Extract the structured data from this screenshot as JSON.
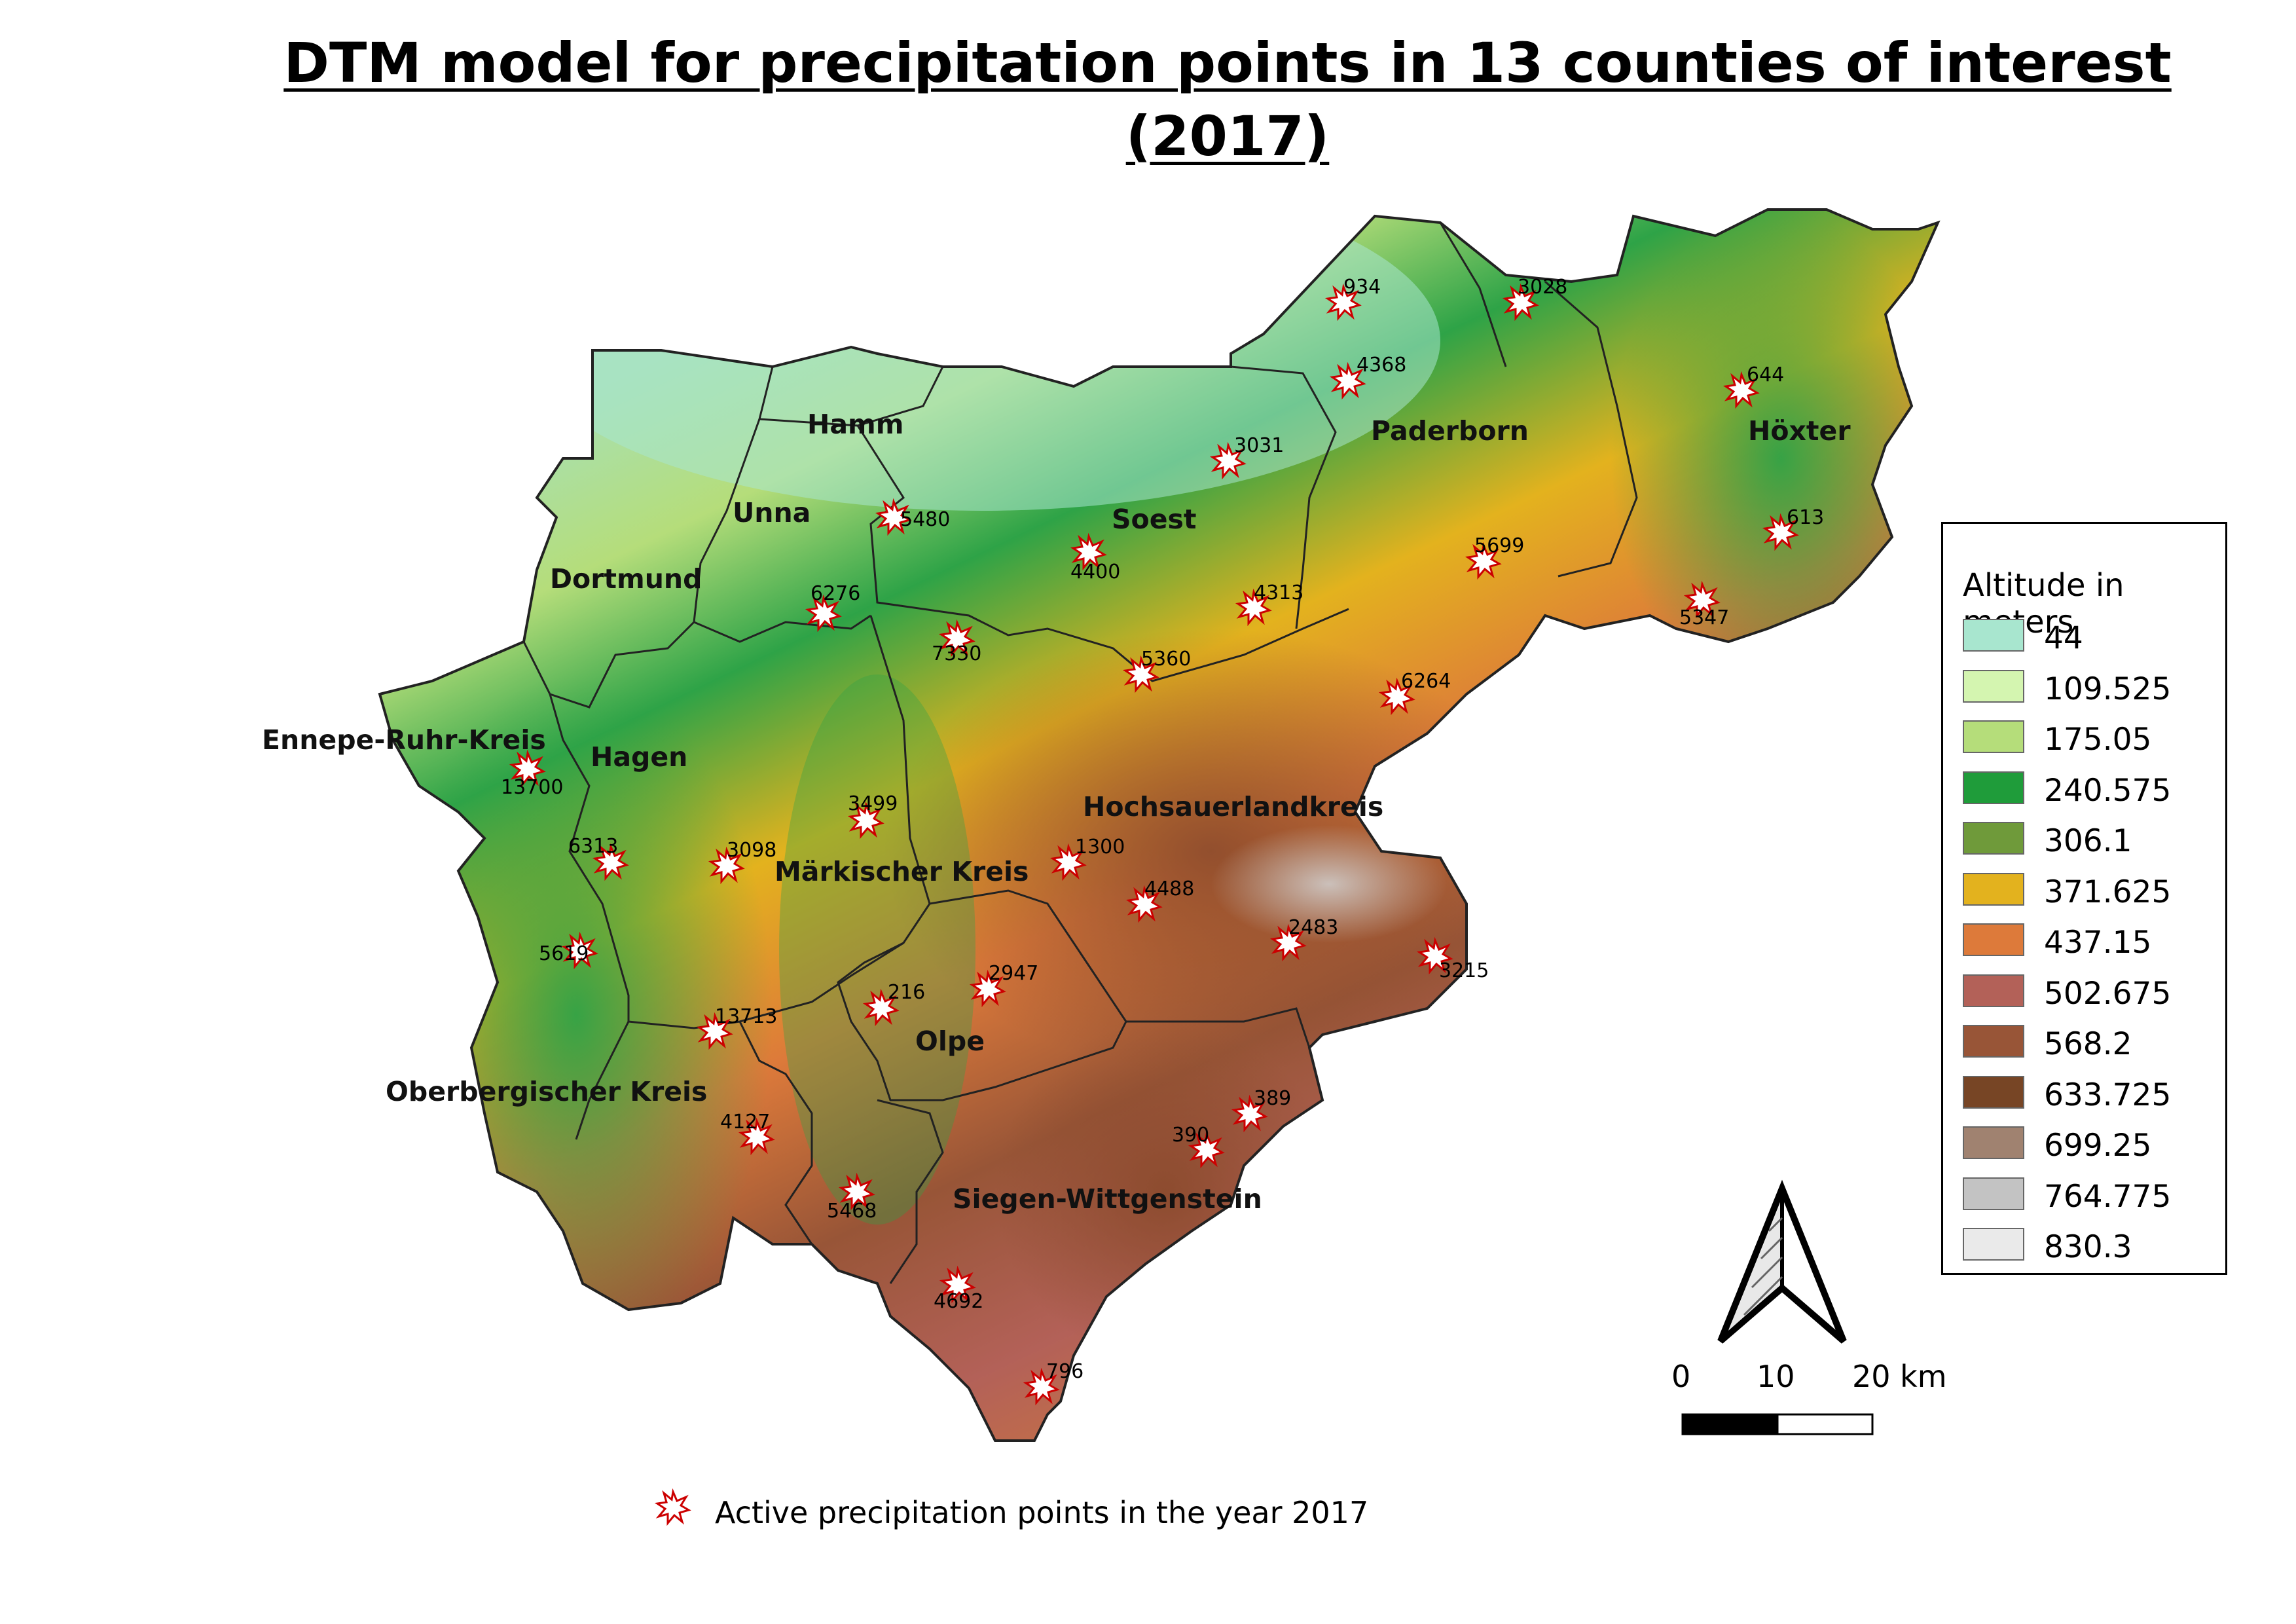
{
  "title_line1": "DTM model for precipitation points in 13 counties of interest",
  "title_line2": "(2017)",
  "legend": {
    "title": "Altitude in meters",
    "entries": [
      {
        "label": "44",
        "color": "#a8e6cf"
      },
      {
        "label": "109.525",
        "color": "#d4f5b0"
      },
      {
        "label": "175.05",
        "color": "#b5dd7a"
      },
      {
        "label": "240.575",
        "color": "#1f9c3a"
      },
      {
        "label": "306.1",
        "color": "#6f9a3a"
      },
      {
        "label": "371.625",
        "color": "#e3b21e"
      },
      {
        "label": "437.15",
        "color": "#dd7a3a"
      },
      {
        "label": "502.675",
        "color": "#b36158"
      },
      {
        "label": "568.2",
        "color": "#985537"
      },
      {
        "label": "633.725",
        "color": "#774525"
      },
      {
        "label": "699.25",
        "color": "#a08270"
      },
      {
        "label": "764.775",
        "color": "#c3c3c3"
      },
      {
        "label": "830.3",
        "color": "#eaeaea"
      }
    ]
  },
  "counties": [
    {
      "id": "hamm",
      "name": "Hamm"
    },
    {
      "id": "unna",
      "name": "Unna"
    },
    {
      "id": "dortmund",
      "name": "Dortmund"
    },
    {
      "id": "soest",
      "name": "Soest"
    },
    {
      "id": "paderborn",
      "name": "Paderborn"
    },
    {
      "id": "hoexter",
      "name": "Höxter"
    },
    {
      "id": "ennepe",
      "name": "Ennepe-Ruhr-Kreis"
    },
    {
      "id": "hagen",
      "name": "Hagen"
    },
    {
      "id": "maerkisch",
      "name": "Märkischer Kreis"
    },
    {
      "id": "hochsauerland",
      "name": "Hochsauerlandkreis"
    },
    {
      "id": "olpe",
      "name": "Olpe"
    },
    {
      "id": "oberberg",
      "name": "Oberbergischer Kreis"
    },
    {
      "id": "siegen",
      "name": "Siegen-Wittgenstein"
    }
  ],
  "stations": [
    "934",
    "3028",
    "4368",
    "644",
    "3031",
    "5480",
    "4400",
    "613",
    "6276",
    "7330",
    "5699",
    "4313",
    "5347",
    "5360",
    "6264",
    "13700",
    "3499",
    "6313",
    "3098",
    "1300",
    "4488",
    "2483",
    "5619",
    "3215",
    "216",
    "2947",
    "13713",
    "389",
    "390",
    "4127",
    "5468",
    "4692",
    "796"
  ],
  "scale": {
    "labels": [
      "0",
      "10",
      "20 km"
    ]
  },
  "bottom_legend": "Active precipitation points in the year 2017"
}
